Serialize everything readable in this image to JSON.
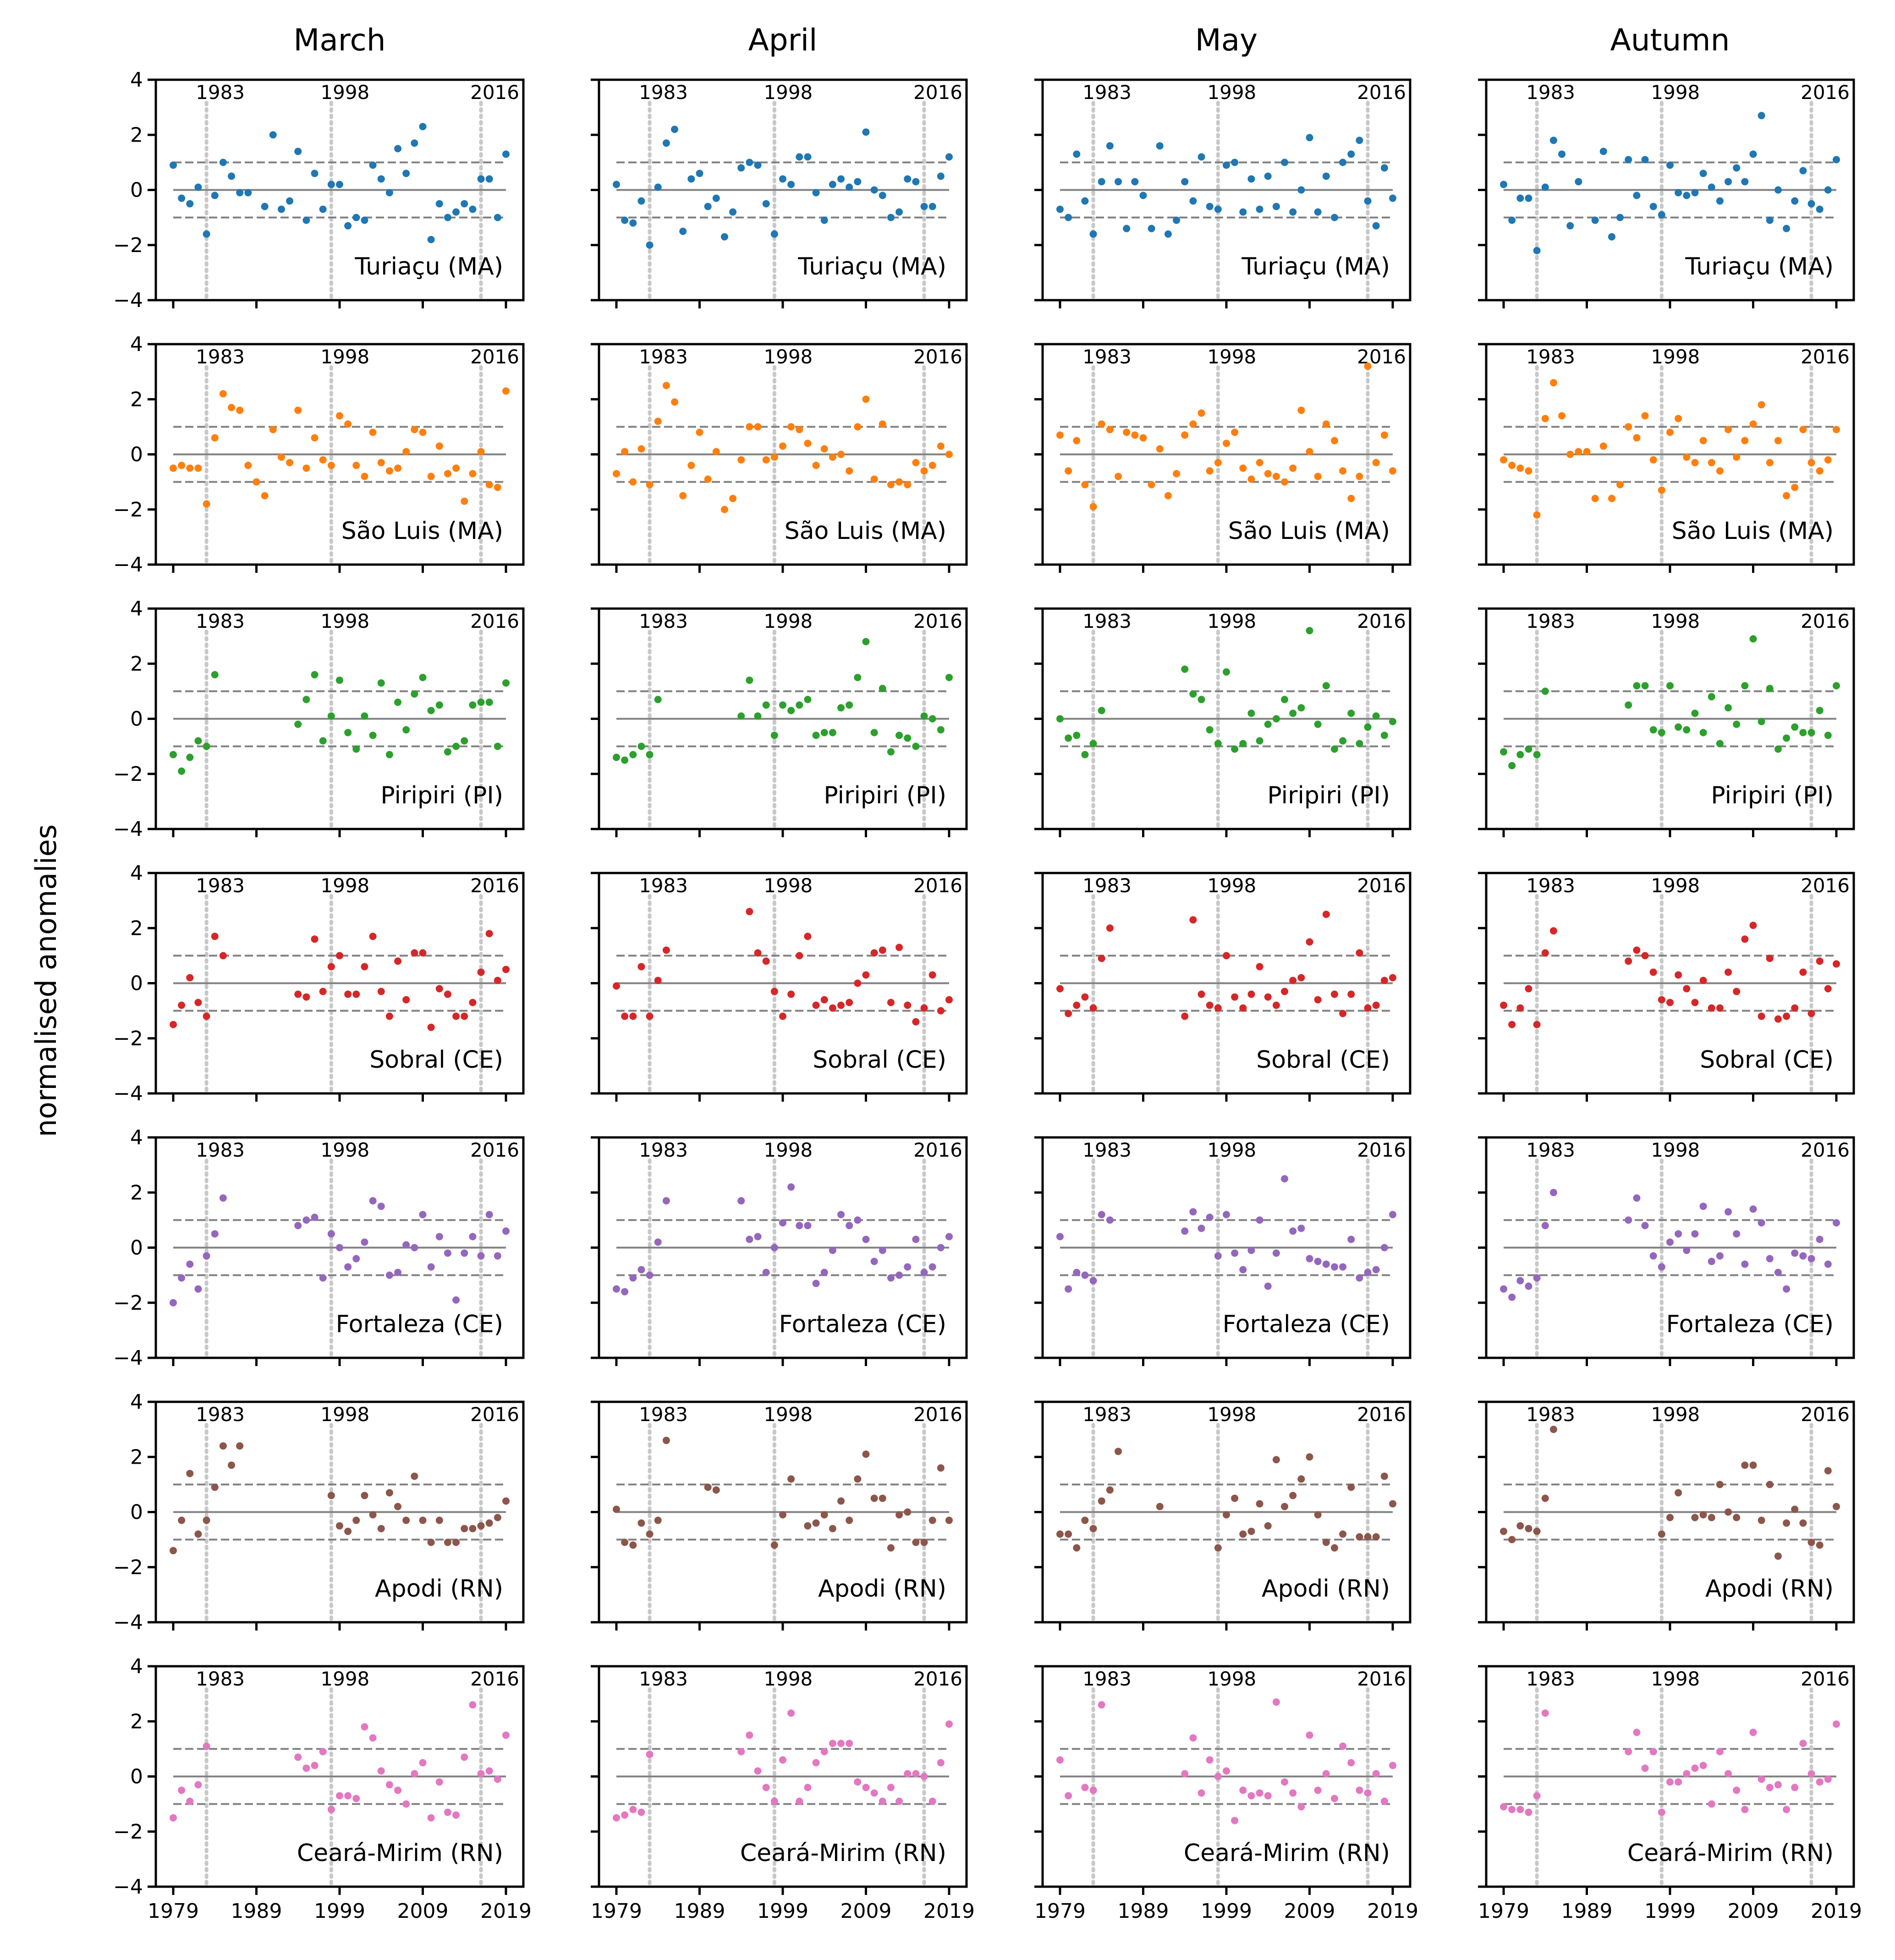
{
  "chart_data": {
    "type": "scatter",
    "ylabel": "normalised anomalies",
    "xlabel": "",
    "columns": [
      "March",
      "April",
      "May",
      "Autumn"
    ],
    "stations": [
      "Turiaçu (MA)",
      "São Luis (MA)",
      "Piripiri (PI)",
      "Sobral (CE)",
      "Fortaleza (CE)",
      "Apodi (RN)",
      "Ceará-Mirim (RN)"
    ],
    "colors": [
      "#1f77b4",
      "#ff7f0e",
      "#2ca02c",
      "#d62728",
      "#9467bd",
      "#8c564b",
      "#e377c2"
    ],
    "xlim": [
      1979,
      2019
    ],
    "ylim": [
      -4,
      4
    ],
    "xticks": [
      1979,
      1989,
      1999,
      2009,
      2019
    ],
    "xtick_labels": [
      "1979",
      "1989",
      "1999",
      "2009",
      "2019"
    ],
    "yticks": [
      -4,
      -2,
      0,
      2,
      4
    ],
    "ytick_labels": [
      "−4",
      "−2",
      "0",
      "2",
      "4"
    ],
    "event_years": [
      1983,
      1998,
      2016
    ],
    "event_labels": [
      "1983",
      "1998",
      "2016"
    ],
    "reference_lines": {
      "zero": 0,
      "thresholds": [
        1,
        -1
      ]
    },
    "first_year": 1979,
    "series": [
      [
        [
          0.9,
          -0.3,
          -0.5,
          0.1,
          -1.6,
          -0.2,
          1.0,
          0.5,
          -0.1,
          -0.1,
          null,
          -0.6,
          2.0,
          -0.7,
          -0.4,
          1.4,
          -1.1,
          0.6,
          -0.7,
          0.2,
          0.2,
          -1.3,
          -1.0,
          -1.1,
          0.9,
          0.4,
          -0.1,
          1.5,
          0.6,
          1.7,
          2.3,
          -1.8,
          -0.5,
          -1.0,
          -0.8,
          -0.5,
          -0.7,
          0.4,
          0.4,
          -1.0,
          1.3
        ],
        [
          0.2,
          -1.1,
          -1.2,
          -0.4,
          -2.0,
          0.1,
          1.7,
          2.2,
          -1.5,
          0.4,
          0.6,
          -0.6,
          -0.3,
          -1.7,
          -0.8,
          0.8,
          1.0,
          0.9,
          -0.5,
          -1.6,
          0.4,
          0.2,
          1.2,
          1.2,
          -0.1,
          -1.1,
          0.2,
          0.4,
          0.1,
          0.3,
          2.1,
          0.0,
          -0.2,
          -1.0,
          -0.8,
          0.4,
          0.3,
          -0.6,
          -0.6,
          0.5,
          1.2
        ],
        [
          -0.7,
          -1.0,
          1.3,
          -0.4,
          -1.6,
          0.3,
          1.6,
          0.3,
          -1.4,
          0.3,
          -0.2,
          -1.4,
          1.6,
          -1.6,
          -1.1,
          0.3,
          -0.4,
          1.2,
          -0.6,
          -0.7,
          0.9,
          1.0,
          -0.8,
          0.4,
          -0.7,
          0.5,
          -0.6,
          1.0,
          -0.8,
          0.0,
          1.9,
          -0.8,
          0.5,
          -1.0,
          1.0,
          1.3,
          1.8,
          -0.4,
          -1.3,
          0.8,
          -0.3
        ],
        [
          0.2,
          -1.1,
          -0.3,
          -0.3,
          -2.2,
          0.1,
          1.8,
          1.3,
          -1.3,
          0.3,
          null,
          -1.1,
          1.4,
          -1.7,
          -1.0,
          1.1,
          -0.2,
          1.1,
          -0.6,
          -0.9,
          0.9,
          -0.1,
          -0.2,
          -0.1,
          0.6,
          0.1,
          -0.4,
          0.3,
          0.8,
          0.3,
          1.3,
          2.7,
          -1.1,
          0.0,
          -1.4,
          -0.4,
          0.7,
          -0.5,
          -0.7,
          0.0,
          1.1
        ]
      ],
      [
        [
          -0.5,
          -0.4,
          -0.5,
          -0.5,
          -1.8,
          0.6,
          2.2,
          1.7,
          1.6,
          -0.4,
          -1.0,
          -1.5,
          0.9,
          -0.1,
          -0.3,
          1.6,
          -0.5,
          0.6,
          -0.2,
          -0.4,
          1.4,
          1.1,
          -0.4,
          -0.8,
          0.8,
          -0.3,
          -0.6,
          -0.5,
          0.1,
          0.9,
          0.8,
          -0.8,
          0.3,
          -0.7,
          -0.5,
          -1.7,
          -0.7,
          0.1,
          -1.1,
          -1.2,
          2.3
        ],
        [
          -0.7,
          0.1,
          -1.0,
          0.2,
          -1.1,
          1.2,
          2.5,
          1.9,
          -1.5,
          -0.4,
          0.8,
          -0.9,
          0.1,
          -2.0,
          -1.6,
          -0.2,
          1.0,
          1.0,
          -0.2,
          -0.1,
          0.3,
          1.0,
          0.9,
          0.4,
          -0.4,
          0.2,
          -0.1,
          0.0,
          -0.6,
          1.0,
          2.0,
          -0.9,
          1.1,
          -1.1,
          -1.0,
          -1.1,
          -0.3,
          -0.6,
          -0.4,
          0.3,
          0.0
        ],
        [
          0.7,
          -0.6,
          0.5,
          -1.1,
          -1.9,
          1.1,
          0.9,
          -0.8,
          0.8,
          0.7,
          0.6,
          -1.1,
          0.2,
          -1.5,
          -0.7,
          0.7,
          1.1,
          1.5,
          -0.6,
          -0.3,
          0.4,
          0.8,
          -0.5,
          -0.9,
          -0.3,
          -0.7,
          -0.8,
          -1.0,
          -0.5,
          1.6,
          0.1,
          -0.8,
          1.1,
          0.5,
          -0.6,
          -1.6,
          -0.8,
          3.2,
          -0.3,
          0.7,
          -0.6
        ],
        [
          -0.2,
          -0.4,
          -0.5,
          -0.6,
          -2.2,
          1.3,
          2.6,
          1.4,
          0.0,
          0.1,
          0.1,
          -1.6,
          0.3,
          -1.6,
          -1.1,
          1.0,
          0.6,
          1.4,
          -0.2,
          -1.3,
          0.8,
          1.3,
          -0.1,
          -0.3,
          0.5,
          -0.3,
          -0.6,
          0.9,
          -0.1,
          0.5,
          1.1,
          1.8,
          -0.3,
          0.5,
          -1.5,
          -1.2,
          0.9,
          -0.3,
          -0.6,
          -0.2,
          0.9
        ]
      ],
      [
        [
          -1.3,
          -1.9,
          -1.4,
          -0.8,
          -1.0,
          1.6,
          null,
          null,
          null,
          null,
          null,
          null,
          null,
          null,
          null,
          -0.2,
          0.7,
          1.6,
          -0.8,
          0.1,
          1.4,
          -0.5,
          -1.1,
          0.1,
          -0.6,
          1.3,
          -1.3,
          0.6,
          -0.4,
          0.9,
          1.5,
          0.3,
          0.5,
          -1.2,
          -1.0,
          -0.8,
          0.5,
          0.6,
          0.6,
          -1.0,
          1.3
        ],
        [
          -1.4,
          -1.5,
          -1.3,
          -1.0,
          -1.3,
          0.7,
          null,
          null,
          null,
          null,
          null,
          null,
          null,
          null,
          null,
          0.1,
          1.4,
          0.1,
          0.5,
          -0.6,
          0.5,
          0.3,
          0.5,
          0.7,
          -0.6,
          -0.5,
          -0.5,
          0.4,
          0.5,
          1.5,
          2.8,
          -0.5,
          1.1,
          -1.2,
          -0.6,
          -0.7,
          -1.0,
          0.1,
          0.0,
          -0.4,
          1.5
        ],
        [
          0.0,
          -0.7,
          -0.6,
          -1.3,
          -0.9,
          0.3,
          null,
          null,
          null,
          null,
          null,
          null,
          null,
          null,
          null,
          1.8,
          0.9,
          0.7,
          -0.4,
          -0.9,
          1.7,
          -1.1,
          -0.9,
          0.2,
          -0.8,
          -0.2,
          0.0,
          0.7,
          0.2,
          0.4,
          3.2,
          -0.2,
          1.2,
          -1.1,
          -0.8,
          0.2,
          -0.9,
          -0.3,
          0.1,
          -0.6,
          -0.1
        ],
        [
          -1.2,
          -1.7,
          -1.3,
          -1.1,
          -1.3,
          1.0,
          null,
          null,
          null,
          null,
          null,
          null,
          null,
          null,
          null,
          0.5,
          1.2,
          1.2,
          -0.4,
          -0.5,
          1.2,
          -0.3,
          -0.4,
          0.2,
          -0.5,
          0.8,
          -0.9,
          0.4,
          -0.2,
          1.2,
          2.9,
          -0.1,
          1.1,
          -1.1,
          -0.7,
          -0.3,
          -0.5,
          -0.5,
          0.3,
          -0.6,
          1.2
        ]
      ],
      [
        [
          -1.5,
          -0.8,
          0.2,
          -0.7,
          -1.2,
          1.7,
          1.0,
          null,
          null,
          null,
          null,
          null,
          null,
          null,
          null,
          -0.4,
          -0.5,
          1.6,
          -0.3,
          0.6,
          1.0,
          -0.4,
          -0.4,
          0.6,
          1.7,
          -0.3,
          -1.2,
          0.8,
          -0.6,
          1.1,
          1.1,
          -1.6,
          -0.2,
          -0.4,
          -1.2,
          -1.2,
          -0.7,
          0.4,
          1.8,
          0.1,
          0.5
        ],
        [
          -0.1,
          -1.2,
          -1.2,
          0.6,
          -1.2,
          0.1,
          1.2,
          null,
          null,
          null,
          null,
          null,
          null,
          null,
          null,
          null,
          2.6,
          1.1,
          0.8,
          -0.3,
          -1.2,
          -0.4,
          1.0,
          1.7,
          -0.8,
          -0.6,
          -0.9,
          -0.8,
          -0.7,
          0.0,
          0.3,
          1.1,
          1.2,
          -0.7,
          1.3,
          -0.8,
          -1.4,
          -0.9,
          0.3,
          -1.0,
          -0.6
        ],
        [
          -0.2,
          -1.1,
          -0.8,
          -0.5,
          -0.9,
          0.9,
          2.0,
          null,
          null,
          null,
          null,
          null,
          null,
          null,
          null,
          -1.2,
          2.3,
          -0.4,
          -0.8,
          -0.9,
          1.0,
          -0.5,
          -0.9,
          -0.4,
          0.6,
          -0.5,
          -0.8,
          -0.3,
          0.1,
          0.2,
          1.5,
          -0.6,
          2.5,
          -0.4,
          -1.1,
          -0.4,
          1.1,
          -0.9,
          -0.8,
          0.1,
          0.2
        ],
        [
          -0.8,
          -1.5,
          -0.9,
          -0.2,
          -1.5,
          1.1,
          1.9,
          null,
          null,
          null,
          null,
          null,
          null,
          null,
          null,
          0.8,
          1.2,
          1.0,
          0.4,
          -0.6,
          -0.7,
          0.3,
          -0.2,
          -0.7,
          0.1,
          -0.9,
          -0.9,
          0.4,
          -0.3,
          1.6,
          2.1,
          -1.2,
          0.9,
          -1.3,
          -1.2,
          -0.9,
          0.4,
          -1.1,
          0.8,
          -0.2,
          0.7
        ]
      ],
      [
        [
          -2.0,
          -1.1,
          -0.6,
          -1.5,
          -0.3,
          0.5,
          1.8,
          null,
          null,
          null,
          null,
          null,
          null,
          null,
          null,
          0.8,
          1.0,
          1.1,
          -1.1,
          0.5,
          0.0,
          -0.7,
          -0.4,
          0.2,
          1.7,
          1.5,
          -1.0,
          -0.9,
          0.1,
          0.0,
          1.2,
          -0.7,
          0.4,
          -0.2,
          -1.9,
          -0.2,
          0.4,
          -0.3,
          1.2,
          -0.3,
          0.6
        ],
        [
          -1.5,
          -1.6,
          -1.1,
          -0.8,
          -1.0,
          0.2,
          1.7,
          null,
          null,
          null,
          null,
          null,
          null,
          null,
          null,
          1.7,
          0.3,
          0.4,
          -0.9,
          0.0,
          0.9,
          2.2,
          0.8,
          0.8,
          -1.3,
          -0.9,
          -0.1,
          1.2,
          0.8,
          1.0,
          0.3,
          -0.5,
          -0.1,
          -1.1,
          -1.0,
          -0.7,
          0.3,
          -0.9,
          -0.7,
          0.0,
          0.4
        ],
        [
          0.4,
          -1.5,
          -0.9,
          -1.0,
          -1.2,
          1.2,
          1.0,
          null,
          null,
          null,
          null,
          null,
          null,
          null,
          null,
          0.6,
          1.3,
          0.7,
          1.1,
          -0.3,
          1.2,
          -0.2,
          -0.8,
          -0.1,
          1.0,
          -1.4,
          -0.2,
          2.5,
          0.6,
          0.7,
          -0.4,
          -0.5,
          -0.6,
          -0.7,
          -0.7,
          0.3,
          -1.1,
          -0.9,
          -0.8,
          0.0,
          1.2
        ],
        [
          -1.5,
          -1.8,
          -1.2,
          -1.4,
          -1.1,
          0.8,
          2.0,
          null,
          null,
          null,
          null,
          null,
          null,
          null,
          null,
          1.0,
          1.8,
          0.8,
          -0.3,
          -0.7,
          0.2,
          0.5,
          -0.1,
          0.5,
          1.5,
          -0.5,
          -0.3,
          1.3,
          0.5,
          -0.6,
          1.4,
          0.9,
          -0.4,
          -0.9,
          -1.5,
          -0.2,
          -0.3,
          -0.4,
          0.3,
          -0.6,
          0.9
        ]
      ],
      [
        [
          -1.4,
          -0.3,
          1.4,
          -0.8,
          -0.3,
          0.9,
          2.4,
          1.7,
          2.4,
          null,
          null,
          null,
          null,
          null,
          null,
          null,
          null,
          null,
          null,
          0.6,
          -0.5,
          -0.7,
          -0.3,
          0.6,
          -0.1,
          -0.6,
          0.7,
          0.2,
          -0.3,
          1.3,
          -0.3,
          -1.1,
          -0.3,
          -1.1,
          -1.1,
          -0.6,
          -0.6,
          -0.5,
          -0.4,
          -0.2,
          0.4
        ],
        [
          0.1,
          -1.1,
          -1.2,
          -0.4,
          -0.8,
          -0.3,
          2.6,
          null,
          null,
          null,
          null,
          0.9,
          0.8,
          null,
          null,
          null,
          null,
          null,
          null,
          -1.2,
          -0.1,
          1.2,
          null,
          -0.5,
          -0.4,
          -0.1,
          -0.6,
          0.4,
          -0.3,
          1.2,
          2.1,
          0.5,
          0.5,
          -1.3,
          -0.1,
          0.0,
          -1.1,
          -1.1,
          -0.3,
          1.6,
          -0.3
        ],
        [
          -0.8,
          -0.8,
          -1.3,
          -0.3,
          -0.6,
          0.4,
          0.8,
          2.2,
          null,
          null,
          null,
          null,
          0.2,
          null,
          null,
          null,
          null,
          null,
          null,
          -1.3,
          -0.1,
          0.5,
          -0.8,
          -0.7,
          0.3,
          -0.5,
          1.9,
          0.2,
          0.6,
          1.2,
          2.0,
          -0.1,
          -1.1,
          -1.3,
          -0.8,
          0.9,
          -0.9,
          -0.9,
          -0.9,
          1.3,
          0.3
        ],
        [
          -0.7,
          -1.0,
          -0.5,
          -0.6,
          -0.7,
          0.5,
          3.0,
          null,
          null,
          null,
          null,
          null,
          null,
          null,
          null,
          null,
          null,
          null,
          null,
          -0.8,
          -0.2,
          0.7,
          null,
          -0.2,
          -0.1,
          -0.2,
          1.0,
          0.0,
          -0.2,
          1.7,
          1.7,
          -0.3,
          1.0,
          -1.6,
          -0.4,
          0.1,
          -0.4,
          -1.1,
          -1.2,
          1.5,
          0.2
        ]
      ],
      [
        [
          -1.5,
          -0.5,
          -0.9,
          -0.3,
          1.1,
          null,
          null,
          null,
          null,
          null,
          null,
          null,
          null,
          null,
          null,
          0.7,
          0.3,
          0.4,
          0.9,
          -1.2,
          -0.7,
          -0.7,
          -0.8,
          1.8,
          1.4,
          0.2,
          -0.3,
          -0.5,
          -1.0,
          0.1,
          0.5,
          -1.5,
          -0.2,
          -1.3,
          -1.4,
          0.7,
          2.6,
          0.1,
          0.2,
          -0.1,
          1.5
        ],
        [
          -1.5,
          -1.4,
          -1.2,
          -1.3,
          0.8,
          null,
          null,
          null,
          null,
          null,
          null,
          null,
          null,
          null,
          null,
          0.9,
          1.5,
          0.2,
          -0.4,
          -0.9,
          0.6,
          2.3,
          -0.9,
          -0.4,
          0.5,
          0.9,
          1.2,
          1.2,
          1.2,
          -0.2,
          -0.4,
          -0.6,
          -0.9,
          -0.4,
          -0.9,
          0.1,
          0.1,
          0.0,
          -0.9,
          0.5,
          1.9
        ],
        [
          0.6,
          -0.7,
          null,
          -0.4,
          -0.5,
          2.6,
          null,
          null,
          null,
          null,
          null,
          null,
          null,
          null,
          null,
          0.1,
          1.4,
          -0.6,
          0.6,
          0.0,
          0.2,
          -1.6,
          -0.5,
          -0.7,
          -0.6,
          -0.7,
          2.7,
          -0.2,
          -0.6,
          -1.1,
          1.5,
          -0.5,
          0.1,
          -0.8,
          1.1,
          0.5,
          -0.5,
          -0.6,
          0.1,
          -0.9,
          0.4
        ],
        [
          -1.1,
          -1.2,
          -1.2,
          -1.3,
          -0.7,
          2.3,
          null,
          null,
          null,
          null,
          null,
          null,
          null,
          null,
          null,
          0.9,
          1.6,
          0.3,
          0.9,
          -1.3,
          -0.2,
          -0.2,
          0.1,
          0.3,
          0.4,
          -1.0,
          0.9,
          0.1,
          -0.5,
          -1.2,
          1.6,
          -0.1,
          -0.4,
          -0.3,
          -1.2,
          -0.4,
          1.2,
          0.1,
          -0.2,
          -0.1,
          1.9
        ]
      ]
    ]
  }
}
